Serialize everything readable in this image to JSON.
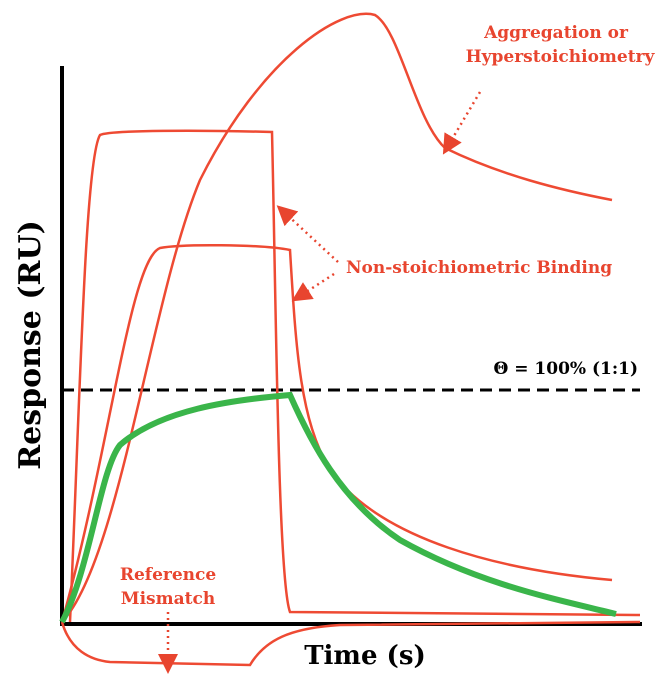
{
  "annotations": {
    "aggregation": [
      "Aggregation or",
      "Hyperstoichiometry"
    ],
    "non_stoichiometric": "Non-stoichiometric Binding",
    "theta": "Θ = 100% (1:1)",
    "reference": [
      "Reference",
      "Mismatch"
    ]
  },
  "axes": {
    "y_label": "Response (RU)",
    "x_label": "Time (s)"
  }
}
